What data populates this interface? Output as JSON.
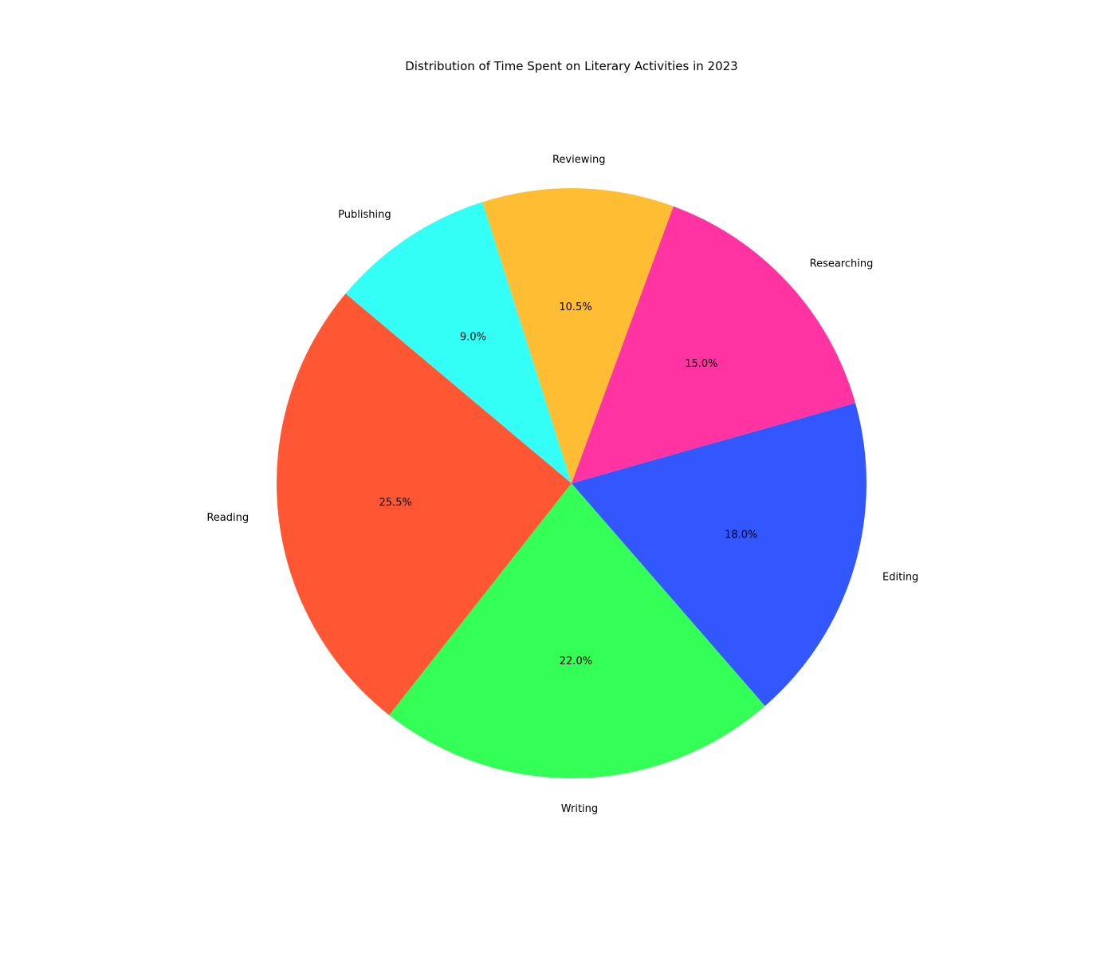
{
  "chart_data": {
    "type": "pie",
    "title": "Distribution of Time Spent on Literary Activities in 2023",
    "slices": [
      {
        "label": "Reading",
        "value": 25.5,
        "pct_text": "25.5%",
        "color": "#FF5733"
      },
      {
        "label": "Writing",
        "value": 22.0,
        "pct_text": "22.0%",
        "color": "#33FF57"
      },
      {
        "label": "Editing",
        "value": 18.0,
        "pct_text": "18.0%",
        "color": "#3357FF"
      },
      {
        "label": "Researching",
        "value": 15.0,
        "pct_text": "15.0%",
        "color": "#FF33A1"
      },
      {
        "label": "Reviewing",
        "value": 10.5,
        "pct_text": "10.5%",
        "color": "#FFBD33"
      },
      {
        "label": "Publishing",
        "value": 9.0,
        "pct_text": "9.0%",
        "color": "#33FFF6"
      }
    ],
    "start_angle_deg": 140,
    "direction": "counterclockwise",
    "legend": "none",
    "grid": false
  }
}
